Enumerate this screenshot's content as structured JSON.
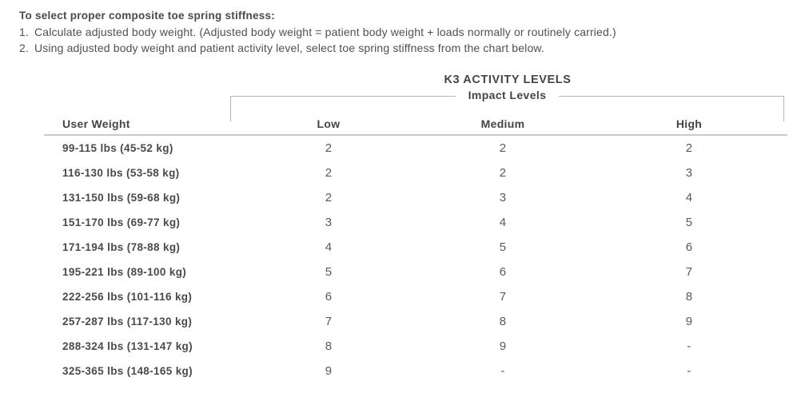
{
  "intro": {
    "heading": "To select proper composite toe spring stiffness:",
    "steps": [
      {
        "num": "1.",
        "text": "Calculate adjusted body weight. (Adjusted body weight = patient body weight + loads normally or routinely carried.)"
      },
      {
        "num": "2.",
        "text": "Using adjusted body weight and patient activity level, select toe spring stiffness from the chart below."
      }
    ]
  },
  "table": {
    "title": "K3 ACTIVITY LEVELS",
    "bracket_label": "Impact Levels",
    "columns": [
      "User Weight",
      "Low",
      "Medium",
      "High"
    ],
    "rows": [
      {
        "label": "99-115 lbs (45-52 kg)",
        "values": [
          "2",
          "2",
          "2"
        ]
      },
      {
        "label": "116-130 lbs (53-58 kg)",
        "values": [
          "2",
          "2",
          "3"
        ]
      },
      {
        "label": "131-150 lbs (59-68 kg)",
        "values": [
          "2",
          "3",
          "4"
        ]
      },
      {
        "label": "151-170 lbs (69-77 kg)",
        "values": [
          "3",
          "4",
          "5"
        ]
      },
      {
        "label": "171-194 lbs (78-88 kg)",
        "values": [
          "4",
          "5",
          "6"
        ]
      },
      {
        "label": "195-221 lbs (89-100 kg)",
        "values": [
          "5",
          "6",
          "7"
        ]
      },
      {
        "label": "222-256 lbs (101-116 kg)",
        "values": [
          "6",
          "7",
          "8"
        ]
      },
      {
        "label": "257-287 lbs (117-130 kg)",
        "values": [
          "7",
          "8",
          "9"
        ]
      },
      {
        "label": "288-324 lbs (131-147 kg)",
        "values": [
          "8",
          "9",
          "-"
        ]
      },
      {
        "label": "325-365 lbs (148-165 kg)",
        "values": [
          "9",
          "-",
          "-"
        ]
      }
    ]
  },
  "colors": {
    "text_dark": "#4a4a4d",
    "text_value": "#59595c",
    "bracket_line": "#b5b5b5",
    "header_rule": "#c9c9c9"
  }
}
